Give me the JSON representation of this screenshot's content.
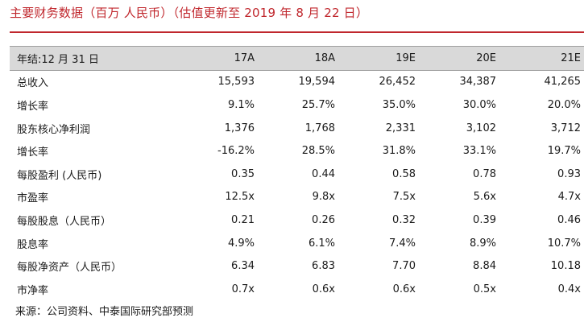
{
  "title": "主要财务数据（百万 人民币）（估值更新至 2019 年 8 月 22 日）",
  "table": {
    "header": [
      "年结:12 月 31 日",
      "17A",
      "18A",
      "19E",
      "20E",
      "21E"
    ],
    "rows": [
      [
        "总收入",
        "15,593",
        "19,594",
        "26,452",
        "34,387",
        "41,265"
      ],
      [
        "增长率",
        "9.1%",
        "25.7%",
        "35.0%",
        "30.0%",
        "20.0%"
      ],
      [
        "股东核心净利润",
        "1,376",
        "1,768",
        "2,331",
        "3,102",
        "3,712"
      ],
      [
        "增长率",
        "-16.2%",
        "28.5%",
        "31.8%",
        "33.1%",
        "19.7%"
      ],
      [
        "每股盈利 (人民币)",
        "0.35",
        "0.44",
        "0.58",
        "0.78",
        "0.93"
      ],
      [
        "市盈率",
        "12.5x",
        "9.8x",
        "7.5x",
        "5.6x",
        "4.7x"
      ],
      [
        "每股股息（人民币）",
        "0.21",
        "0.26",
        "0.32",
        "0.39",
        "0.46"
      ],
      [
        "股息率",
        "4.9%",
        "6.1%",
        "7.4%",
        "8.9%",
        "10.7%"
      ],
      [
        "每股净资产（人民币）",
        "6.34",
        "6.83",
        "7.70",
        "8.84",
        "10.18"
      ],
      [
        "市净率",
        "0.7x",
        "0.6x",
        "0.6x",
        "0.5x",
        "0.4x"
      ]
    ]
  },
  "source": "来源：公司资料、中泰国际研究部预测",
  "colors": {
    "accent": "#c0272d",
    "header_bg": "#d9d9d9"
  }
}
